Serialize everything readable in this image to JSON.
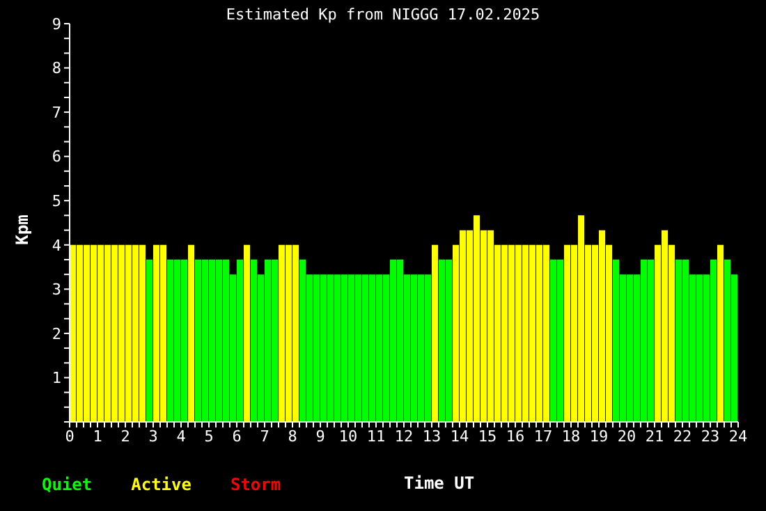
{
  "chart_data": {
    "type": "bar",
    "title": "Estimated Kp from NIGGG 17.02.2025",
    "xlabel": "Time UT",
    "ylabel": "Kpm",
    "stacked": true,
    "legend": "bottom left",
    "grid": false,
    "x": [
      0.125,
      0.375,
      0.625,
      0.875,
      1.125,
      1.375,
      1.625,
      1.875,
      2.125,
      2.375,
      2.625,
      2.875,
      3.125,
      3.375,
      3.625,
      3.875,
      4.125,
      4.375,
      4.625,
      4.875,
      5.125,
      5.375,
      5.625,
      5.875,
      6.125,
      6.375,
      6.625,
      6.875,
      7.125,
      7.375,
      7.625,
      7.875,
      8.125,
      8.375,
      8.625,
      8.875,
      9.125,
      9.375,
      9.625,
      9.875,
      10.125,
      10.375,
      10.625,
      10.875,
      11.125,
      11.375,
      11.625,
      11.875,
      12.125,
      12.375,
      12.625,
      12.875,
      13.125,
      13.375,
      13.625,
      13.875,
      14.125,
      14.375,
      14.625,
      14.875,
      15.125,
      15.375,
      15.625,
      15.875,
      16.125,
      16.375,
      16.625,
      16.875,
      17.125,
      17.375,
      17.625,
      17.875,
      18.125,
      18.375,
      18.625,
      18.875,
      19.125,
      19.375,
      19.625,
      19.875,
      20.125,
      20.375,
      20.625,
      20.875,
      21.125,
      21.375,
      21.625,
      21.875,
      22.125,
      22.375,
      22.625,
      22.875,
      23.125,
      23.375,
      23.625,
      23.875
    ],
    "series": [
      {
        "name": "Quiet",
        "color": "#00ff00",
        "values": [
          null,
          null,
          null,
          null,
          null,
          null,
          null,
          null,
          null,
          null,
          null,
          3.67,
          null,
          null,
          3.67,
          3.67,
          3.67,
          null,
          3.67,
          3.67,
          3.67,
          3.67,
          3.67,
          3.33,
          3.67,
          null,
          3.67,
          3.33,
          3.67,
          3.67,
          null,
          null,
          null,
          3.67,
          3.33,
          3.33,
          3.33,
          3.33,
          3.33,
          3.33,
          3.33,
          3.33,
          3.33,
          3.33,
          3.33,
          3.33,
          3.67,
          3.67,
          3.33,
          3.33,
          3.33,
          3.33,
          null,
          3.67,
          3.67,
          null,
          null,
          null,
          null,
          null,
          null,
          null,
          null,
          null,
          null,
          null,
          null,
          null,
          null,
          3.67,
          3.67,
          null,
          null,
          null,
          null,
          null,
          null,
          null,
          3.67,
          3.33,
          3.33,
          3.33,
          3.67,
          3.67,
          null,
          null,
          null,
          3.67,
          3.67,
          3.33,
          3.33,
          3.33,
          3.67,
          null,
          3.67,
          3.33
        ]
      },
      {
        "name": "Active",
        "color": "#ffff00",
        "values": [
          4,
          4,
          4,
          4,
          4,
          4,
          4,
          4,
          4,
          4,
          4,
          null,
          4,
          4,
          null,
          null,
          null,
          4,
          null,
          null,
          null,
          null,
          null,
          null,
          null,
          4,
          null,
          null,
          null,
          null,
          4,
          4,
          4,
          null,
          null,
          null,
          null,
          null,
          null,
          null,
          null,
          null,
          null,
          null,
          null,
          null,
          null,
          null,
          null,
          null,
          null,
          null,
          4,
          null,
          null,
          4,
          4.33,
          4.33,
          4.67,
          4.33,
          4.33,
          4,
          4,
          4,
          4,
          4,
          4,
          4,
          4,
          null,
          null,
          4,
          4,
          4.67,
          4,
          4,
          4.33,
          4,
          null,
          null,
          null,
          null,
          null,
          null,
          4,
          4.33,
          4,
          null,
          null,
          null,
          null,
          null,
          null,
          4,
          null,
          null
        ]
      },
      {
        "name": "Storm",
        "color": "#ff0000",
        "values": [
          null,
          null,
          null,
          null,
          null,
          null,
          null,
          null,
          null,
          null,
          null,
          null,
          null,
          null,
          null,
          null,
          null,
          null,
          null,
          null,
          null,
          null,
          null,
          null,
          null,
          null,
          null,
          null,
          null,
          null,
          null,
          null,
          null,
          null,
          null,
          null,
          null,
          null,
          null,
          null,
          null,
          null,
          null,
          null,
          null,
          null,
          null,
          null,
          null,
          null,
          null,
          null,
          null,
          null,
          null,
          null,
          null,
          null,
          null,
          null,
          null,
          null,
          null,
          null,
          null,
          null,
          null,
          null,
          null,
          null,
          null,
          null,
          null,
          null,
          null,
          null,
          null,
          null,
          null,
          null,
          null,
          null,
          null,
          null,
          null,
          null,
          null,
          null,
          null,
          null,
          null,
          null,
          null,
          null,
          null,
          null
        ]
      }
    ],
    "xlim": [
      0,
      24
    ],
    "xticks": [
      0,
      {
        "value": 0.25,
        "label": null
      },
      {
        "value": 0.5,
        "label": null
      },
      {
        "value": 0.75,
        "label": null
      },
      1,
      {
        "value": 1.25,
        "label": null
      },
      {
        "value": 1.5,
        "label": null
      },
      {
        "value": 1.75,
        "label": null
      },
      2,
      {
        "value": 2.25,
        "label": null
      },
      {
        "value": 2.5,
        "label": null
      },
      {
        "value": 2.75,
        "label": null
      },
      3,
      {
        "value": 3.25,
        "label": null
      },
      {
        "value": 3.5,
        "label": null
      },
      {
        "value": 3.75,
        "label": null
      },
      4,
      {
        "value": 4.25,
        "label": null
      },
      {
        "value": 4.5,
        "label": null
      },
      {
        "value": 4.75,
        "label": null
      },
      5,
      {
        "value": 5.25,
        "label": null
      },
      {
        "value": 5.5,
        "label": null
      },
      {
        "value": 5.75,
        "label": null
      },
      6,
      {
        "value": 6.25,
        "label": null
      },
      {
        "value": 6.5,
        "label": null
      },
      {
        "value": 6.75,
        "label": null
      },
      7,
      {
        "value": 7.25,
        "label": null
      },
      {
        "value": 7.5,
        "label": null
      },
      {
        "value": 7.75,
        "label": null
      },
      8,
      {
        "value": 8.25,
        "label": null
      },
      {
        "value": 8.5,
        "label": null
      },
      {
        "value": 8.75,
        "label": null
      },
      9,
      {
        "value": 9.25,
        "label": null
      },
      {
        "value": 9.5,
        "label": null
      },
      {
        "value": 9.75,
        "label": null
      },
      10,
      {
        "value": 10.25,
        "label": null
      },
      {
        "value": 10.5,
        "label": null
      },
      {
        "value": 10.75,
        "label": null
      },
      11,
      {
        "value": 11.25,
        "label": null
      },
      {
        "value": 11.5,
        "label": null
      },
      {
        "value": 11.75,
        "label": null
      },
      12,
      {
        "value": 12.25,
        "label": null
      },
      {
        "value": 12.5,
        "label": null
      },
      {
        "value": 12.75,
        "label": null
      },
      13,
      {
        "value": 13.25,
        "label": null
      },
      {
        "value": 13.5,
        "label": null
      },
      {
        "value": 13.75,
        "label": null
      },
      14,
      {
        "value": 14.25,
        "label": null
      },
      {
        "value": 14.5,
        "label": null
      },
      {
        "value": 14.75,
        "label": null
      },
      15,
      {
        "value": 15.25,
        "label": null
      },
      {
        "value": 15.5,
        "label": null
      },
      {
        "value": 15.75,
        "label": null
      },
      16,
      {
        "value": 16.25,
        "label": null
      },
      {
        "value": 16.5,
        "label": null
      },
      {
        "value": 16.75,
        "label": null
      },
      17,
      {
        "value": 17.25,
        "label": null
      },
      {
        "value": 17.5,
        "label": null
      },
      {
        "value": 17.75,
        "label": null
      },
      18,
      {
        "value": 18.25,
        "label": null
      },
      {
        "value": 18.5,
        "label": null
      },
      {
        "value": 18.75,
        "label": null
      },
      19,
      {
        "value": 19.25,
        "label": null
      },
      {
        "value": 19.5,
        "label": null
      },
      {
        "value": 19.75,
        "label": null
      },
      20,
      {
        "value": 20.25,
        "label": null
      },
      {
        "value": 20.5,
        "label": null
      },
      {
        "value": 20.75,
        "label": null
      },
      21,
      {
        "value": 21.25,
        "label": null
      },
      {
        "value": 21.5,
        "label": null
      },
      {
        "value": 21.75,
        "label": null
      },
      22,
      {
        "value": 22.25,
        "label": null
      },
      {
        "value": 22.5,
        "label": null
      },
      {
        "value": 22.75,
        "label": null
      },
      23,
      {
        "value": 23.25,
        "label": null
      },
      {
        "value": 23.5,
        "label": null
      },
      {
        "value": 23.75,
        "label": null
      },
      24
    ],
    "ylim": [
      0,
      9
    ],
    "yticks": [
      {
        "value": 0,
        "label": null
      },
      {
        "value": 0.333,
        "label": null
      },
      {
        "value": 0.667,
        "label": null
      },
      1,
      {
        "value": 1.333,
        "label": null
      },
      {
        "value": 1.667,
        "label": null
      },
      2,
      {
        "value": 2.333,
        "label": null
      },
      {
        "value": 2.667,
        "label": null
      },
      3,
      {
        "value": 3.333,
        "label": null
      },
      {
        "value": 3.667,
        "label": null
      },
      4,
      {
        "value": 4.333,
        "label": null
      },
      {
        "value": 4.667,
        "label": null
      },
      5,
      {
        "value": 5.333,
        "label": null
      },
      {
        "value": 5.667,
        "label": null
      },
      6,
      {
        "value": 6.333,
        "label": null
      },
      {
        "value": 6.667,
        "label": null
      },
      7,
      {
        "value": 7.333,
        "label": null
      },
      {
        "value": 7.667,
        "label": null
      },
      8,
      {
        "value": 8.333,
        "label": null
      },
      {
        "value": 8.667,
        "label": null
      },
      9
    ]
  }
}
